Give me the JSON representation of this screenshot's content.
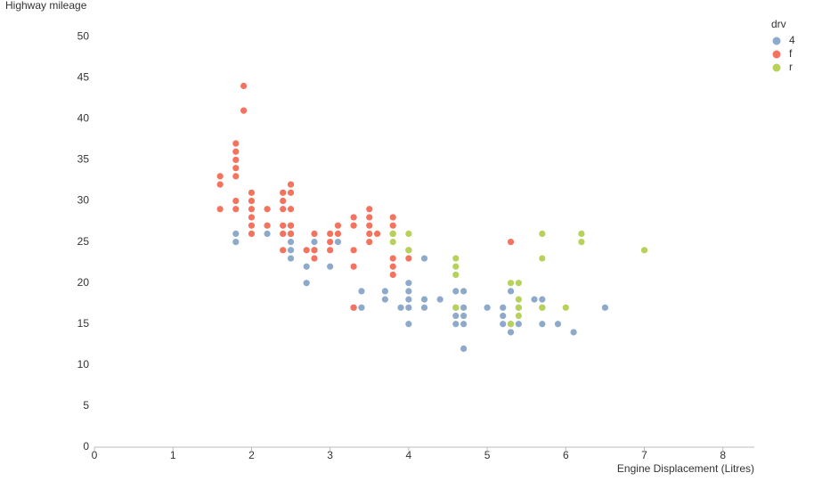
{
  "chart_data": {
    "type": "scatter",
    "x_label": "Engine Displacement (Litres)",
    "y_label": "Highway mileage",
    "legend_title": "drv",
    "legend_position": "top-right",
    "xlim": [
      0,
      8.4
    ],
    "ylim": [
      0,
      51
    ],
    "xticks": [
      0,
      1,
      2,
      3,
      4,
      5,
      6,
      7,
      8
    ],
    "yticks": [
      0,
      5,
      10,
      15,
      20,
      25,
      30,
      35,
      40,
      45,
      50
    ],
    "series": [
      {
        "name": "4",
        "color": "#8eaacb",
        "x": [
          1.8,
          1.8,
          2.2,
          2.5,
          2.5,
          2.5,
          2.5,
          2.5,
          2.7,
          2.7,
          2.8,
          2.8,
          3.0,
          3.1,
          3.4,
          3.4,
          3.3,
          3.7,
          3.7,
          3.9,
          4.0,
          4.0,
          4.0,
          4.0,
          4.0,
          4.2,
          4.2,
          4.2,
          4.4,
          4.6,
          4.6,
          4.6,
          4.6,
          4.7,
          4.7,
          4.7,
          4.7,
          4.7,
          5.0,
          5.2,
          5.2,
          5.2,
          5.3,
          5.3,
          5.3,
          5.4,
          5.4,
          5.6,
          5.7,
          5.7,
          5.7,
          5.9,
          6.1,
          6.5
        ],
        "values": [
          26,
          25,
          26,
          27,
          26,
          25,
          24,
          23,
          22,
          20,
          25,
          24,
          22,
          25,
          19,
          17,
          17,
          19,
          18,
          17,
          20,
          19,
          18,
          17,
          15,
          23,
          18,
          17,
          18,
          19,
          17,
          16,
          15,
          19,
          17,
          16,
          15,
          12,
          17,
          17,
          16,
          15,
          19,
          15,
          14,
          17,
          15,
          18,
          18,
          17,
          15,
          15,
          14,
          17
        ]
      },
      {
        "name": "f",
        "color": "#f4735f",
        "x": [
          1.6,
          1.6,
          1.6,
          1.8,
          1.8,
          1.8,
          1.8,
          1.8,
          1.8,
          1.8,
          1.9,
          1.9,
          2.0,
          2.0,
          2.0,
          2.0,
          2.0,
          2.0,
          2.2,
          2.2,
          2.4,
          2.4,
          2.4,
          2.4,
          2.4,
          2.4,
          2.5,
          2.5,
          2.5,
          2.5,
          2.5,
          2.7,
          2.8,
          2.8,
          2.8,
          3.0,
          3.0,
          3.0,
          3.1,
          3.1,
          3.3,
          3.3,
          3.3,
          3.3,
          3.3,
          3.5,
          3.5,
          3.5,
          3.5,
          3.5,
          3.6,
          3.8,
          3.8,
          3.8,
          3.8,
          3.8,
          3.8,
          4.0,
          4.0,
          5.3
        ],
        "values": [
          33,
          32,
          29,
          37,
          36,
          35,
          34,
          33,
          30,
          29,
          44,
          41,
          31,
          30,
          29,
          28,
          27,
          26,
          29,
          27,
          31,
          30,
          29,
          27,
          26,
          24,
          32,
          31,
          29,
          27,
          26,
          24,
          26,
          24,
          23,
          26,
          25,
          24,
          27,
          26,
          28,
          27,
          24,
          22,
          17,
          29,
          28,
          27,
          26,
          25,
          26,
          28,
          27,
          26,
          23,
          22,
          21,
          24,
          23,
          25
        ]
      },
      {
        "name": "r",
        "color": "#b6d25a",
        "x": [
          3.8,
          3.8,
          4.0,
          4.0,
          4.6,
          4.6,
          4.6,
          4.6,
          5.3,
          5.3,
          5.4,
          5.4,
          5.4,
          5.4,
          5.7,
          5.7,
          5.7,
          6.0,
          6.2,
          6.2,
          7.0
        ],
        "values": [
          26,
          25,
          26,
          24,
          23,
          22,
          21,
          17,
          20,
          15,
          20,
          18,
          17,
          16,
          26,
          23,
          17,
          17,
          26,
          25,
          24
        ]
      }
    ]
  }
}
